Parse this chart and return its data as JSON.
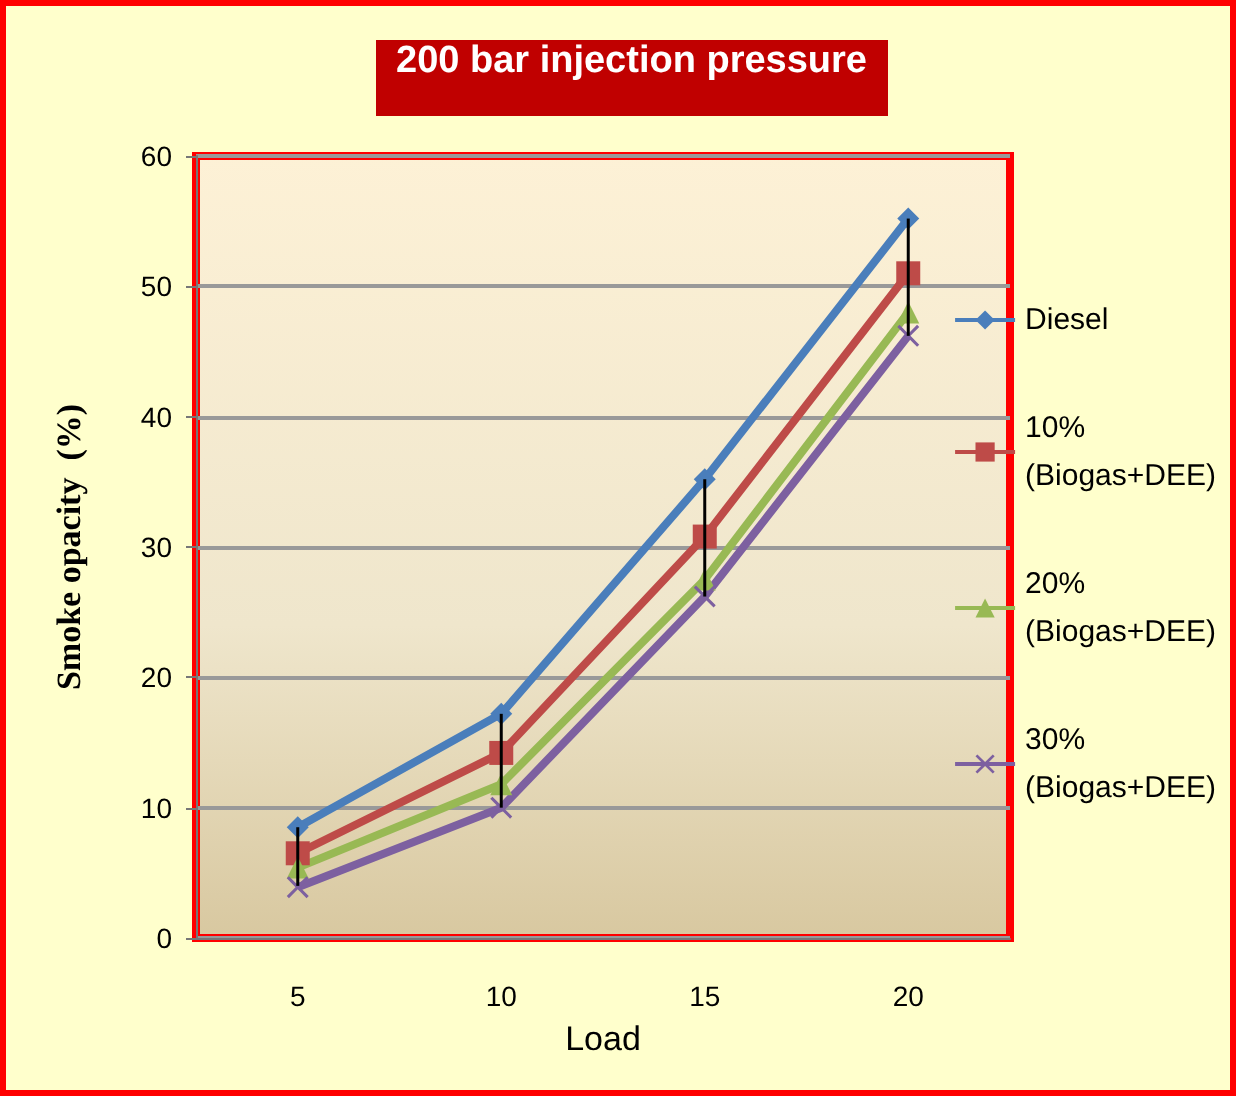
{
  "chart_data": {
    "type": "line",
    "title": "200 bar injection pressure",
    "xlabel": "Load",
    "ylabel": "Smoke opacity  (%)",
    "categories": [
      "5",
      "10",
      "15",
      "20"
    ],
    "series": [
      {
        "name": "Diesel",
        "color": "#4a7ebb",
        "marker": "diamond",
        "values": [
          8.5,
          17.2,
          35.2,
          55.2
        ],
        "errors": [
          [
            4,
            8.5
          ],
          [
            10,
            17.2
          ],
          [
            26.2,
            35.2
          ],
          [
            46.2,
            55.2
          ]
        ]
      },
      {
        "name": "10% (Biogas+DEE)",
        "color": "#be4b48",
        "marker": "square",
        "values": [
          6.5,
          14.2,
          30.8,
          51
        ]
      },
      {
        "name": "20% (Biogas+DEE)",
        "color": "#98b954",
        "marker": "triangle",
        "values": [
          5.4,
          11.8,
          27.5,
          48
        ]
      },
      {
        "name": "30% (Biogas+DEE)",
        "color": "#7d60a0",
        "marker": "cross",
        "values": [
          3.9,
          10,
          26.2,
          46.2
        ]
      }
    ],
    "ylim": [
      0,
      60
    ],
    "yticks": [
      0,
      10,
      20,
      30,
      40,
      50,
      60
    ],
    "grid": "y",
    "legend": "right",
    "line_style": "solid"
  }
}
